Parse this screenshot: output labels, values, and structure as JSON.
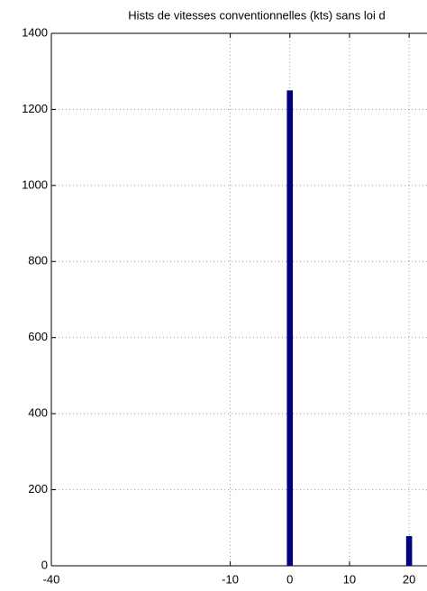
{
  "chart_data": {
    "type": "bar",
    "title": "Hists de vitesses conventionnelles (kts) sans loi d",
    "x": [
      0,
      20
    ],
    "values": [
      1250,
      78
    ],
    "bar_width": 1,
    "color": "#00007f",
    "xlim": [
      -40,
      23
    ],
    "xticks": [
      -40,
      -10,
      0,
      10,
      20
    ],
    "ylim": [
      0,
      1400
    ],
    "yticks": [
      0,
      200,
      400,
      600,
      800,
      1000,
      1200,
      1400
    ],
    "grid": true
  }
}
